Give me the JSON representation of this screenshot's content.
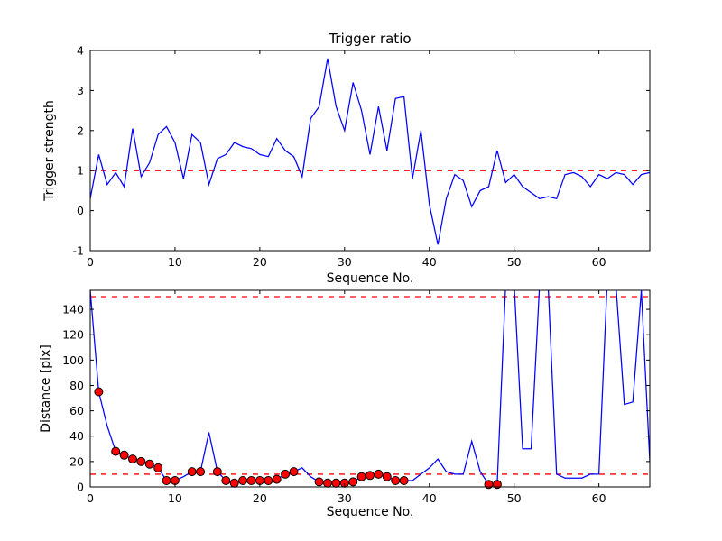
{
  "figure": {
    "bg_color": "#ffffff",
    "line_color": "#0000ff",
    "threshold_color": "#ff0000",
    "marker_color": "#ff0000",
    "marker_edge_color": "#000000",
    "axes_color": "#000000"
  },
  "chart_data": [
    {
      "type": "line",
      "title": "Trigger ratio",
      "xlabel": "Sequence No.",
      "ylabel": "Trigger strength",
      "xlim": [
        0,
        66
      ],
      "ylim": [
        -1,
        4
      ],
      "xticks": [
        0,
        10,
        20,
        30,
        40,
        50,
        60
      ],
      "yticks": [
        -1,
        0,
        1,
        2,
        3,
        4
      ],
      "grid": false,
      "legend": "none",
      "hlines": [
        1.0
      ],
      "x": [
        0,
        1,
        2,
        3,
        4,
        5,
        6,
        7,
        8,
        9,
        10,
        11,
        12,
        13,
        14,
        15,
        16,
        17,
        18,
        19,
        20,
        21,
        22,
        23,
        24,
        25,
        26,
        27,
        28,
        29,
        30,
        31,
        32,
        33,
        34,
        35,
        36,
        37,
        38,
        39,
        40,
        41,
        42,
        43,
        44,
        45,
        46,
        47,
        48,
        49,
        50,
        51,
        52,
        53,
        54,
        55,
        56,
        57,
        58,
        59,
        60,
        61,
        62,
        63,
        64,
        65,
        66
      ],
      "y": [
        0.3,
        1.4,
        0.65,
        0.95,
        0.6,
        2.05,
        0.85,
        1.2,
        1.9,
        2.1,
        1.7,
        0.8,
        1.9,
        1.7,
        0.65,
        1.3,
        1.4,
        1.7,
        1.6,
        1.55,
        1.4,
        1.35,
        1.8,
        1.5,
        1.35,
        0.85,
        2.3,
        2.6,
        3.8,
        2.6,
        2.0,
        3.2,
        2.5,
        1.4,
        2.6,
        1.5,
        2.8,
        2.85,
        0.8,
        2.0,
        0.15,
        -0.85,
        0.3,
        0.9,
        0.75,
        0.1,
        0.5,
        0.6,
        1.5,
        0.7,
        0.9,
        0.6,
        0.45,
        0.3,
        0.35,
        0.3,
        0.9,
        0.95,
        0.85,
        0.6,
        0.9,
        0.8,
        0.95,
        0.9,
        0.65,
        0.9,
        0.95
      ],
      "marker_indices": []
    },
    {
      "type": "line",
      "title": "",
      "xlabel": "Sequence No.",
      "ylabel": "Distance [pix]",
      "xlim": [
        0,
        66
      ],
      "ylim": [
        0,
        155
      ],
      "xticks": [
        0,
        10,
        20,
        30,
        40,
        50,
        60
      ],
      "yticks": [
        0,
        20,
        40,
        60,
        80,
        100,
        120,
        140
      ],
      "grid": false,
      "legend": "none",
      "hlines": [
        150,
        10
      ],
      "x": [
        0,
        1,
        2,
        3,
        4,
        5,
        6,
        7,
        8,
        9,
        10,
        11,
        12,
        13,
        14,
        15,
        16,
        17,
        18,
        19,
        20,
        21,
        22,
        23,
        24,
        25,
        26,
        27,
        28,
        29,
        30,
        31,
        32,
        33,
        34,
        35,
        36,
        37,
        38,
        39,
        40,
        41,
        42,
        43,
        44,
        45,
        46,
        47,
        48,
        49,
        50,
        51,
        52,
        53,
        54,
        55,
        56,
        57,
        58,
        59,
        60,
        61,
        62,
        63,
        64,
        65,
        66
      ],
      "y": [
        155,
        75,
        48,
        28,
        25,
        22,
        20,
        18,
        15,
        5,
        5,
        8,
        12,
        12,
        43,
        12,
        5,
        3,
        5,
        5,
        5,
        5,
        6,
        10,
        12,
        15,
        8,
        4,
        3,
        3,
        3,
        4,
        8,
        9,
        10,
        8,
        5,
        5,
        5,
        10,
        15,
        22,
        12,
        10,
        10,
        36,
        12,
        2,
        2,
        160,
        160,
        30,
        30,
        160,
        160,
        10,
        7,
        7,
        7,
        10,
        10,
        165,
        160,
        65,
        67,
        155,
        20
      ],
      "marker_indices": [
        1,
        3,
        4,
        5,
        6,
        7,
        8,
        9,
        10,
        12,
        13,
        15,
        16,
        17,
        18,
        19,
        20,
        21,
        22,
        23,
        24,
        27,
        28,
        29,
        30,
        31,
        32,
        33,
        34,
        35,
        36,
        37,
        47,
        48
      ]
    }
  ]
}
